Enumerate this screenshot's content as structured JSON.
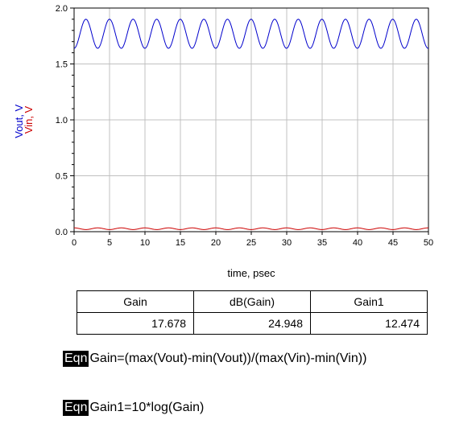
{
  "chart_data": {
    "type": "line",
    "xlabel": "time, psec",
    "ylabel_series": [
      "Vout, V",
      "Vin, V"
    ],
    "xlim": [
      0,
      50
    ],
    "ylim": [
      0,
      2.0
    ],
    "x_ticks": [
      "0",
      "5",
      "10",
      "15",
      "20",
      "25",
      "30",
      "35",
      "40",
      "45",
      "50"
    ],
    "y_ticks": [
      "0.0",
      "0.5",
      "1.0",
      "1.5",
      "2.0"
    ],
    "grid": true,
    "series": [
      {
        "name": "Vout",
        "color": "#0000cc",
        "waveform": "sine",
        "max": 1.9,
        "min": 1.64,
        "period_psec": 3.33,
        "phase_psec": 0.0
      },
      {
        "name": "Vin",
        "color": "#cc0000",
        "waveform": "sine",
        "max": 0.034,
        "min": 0.019,
        "period_psec": 3.33,
        "phase_psec": 1.67
      }
    ]
  },
  "results_table": {
    "headers": [
      "Gain",
      "dB(Gain)",
      "Gain1"
    ],
    "values": [
      "17.678",
      "24.948",
      "12.474"
    ]
  },
  "equations": [
    {
      "tag": "Eqn",
      "text": "Gain=(max(Vout)-min(Vout))/(max(Vin)-min(Vin))"
    },
    {
      "tag": "Eqn",
      "text": "Gain1=10*log(Gain)"
    }
  ]
}
